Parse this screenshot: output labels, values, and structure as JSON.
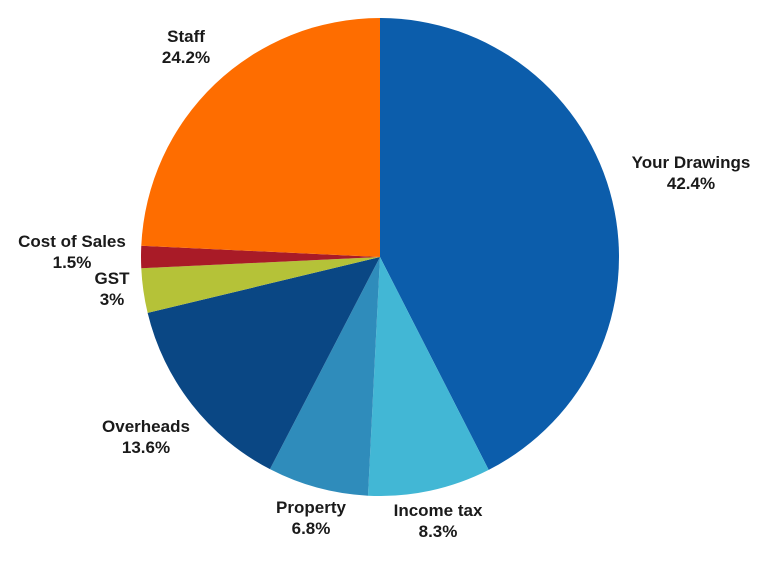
{
  "chart_data": {
    "type": "pie",
    "title": "",
    "start": "top",
    "direction": "clockwise",
    "slices": [
      {
        "label": "Your Drawings",
        "value": 42.4,
        "value_label": "42.4%",
        "color": "#0c5dab"
      },
      {
        "label": "Income tax",
        "value": 8.3,
        "value_label": "8.3%",
        "color": "#42b7d5"
      },
      {
        "label": "Property",
        "value": 6.8,
        "value_label": "6.8%",
        "color": "#2f8cbb"
      },
      {
        "label": "Overheads",
        "value": 13.6,
        "value_label": "13.6%",
        "color": "#0a4784"
      },
      {
        "label": "GST",
        "value": 3,
        "value_label": "3%",
        "color": "#b5c238"
      },
      {
        "label": "Cost of Sales",
        "value": 1.5,
        "value_label": "1.5%",
        "color": "#a91b27"
      },
      {
        "label": "Staff",
        "value": 24.2,
        "value_label": "24.2%",
        "color": "#fe6d00"
      }
    ]
  }
}
